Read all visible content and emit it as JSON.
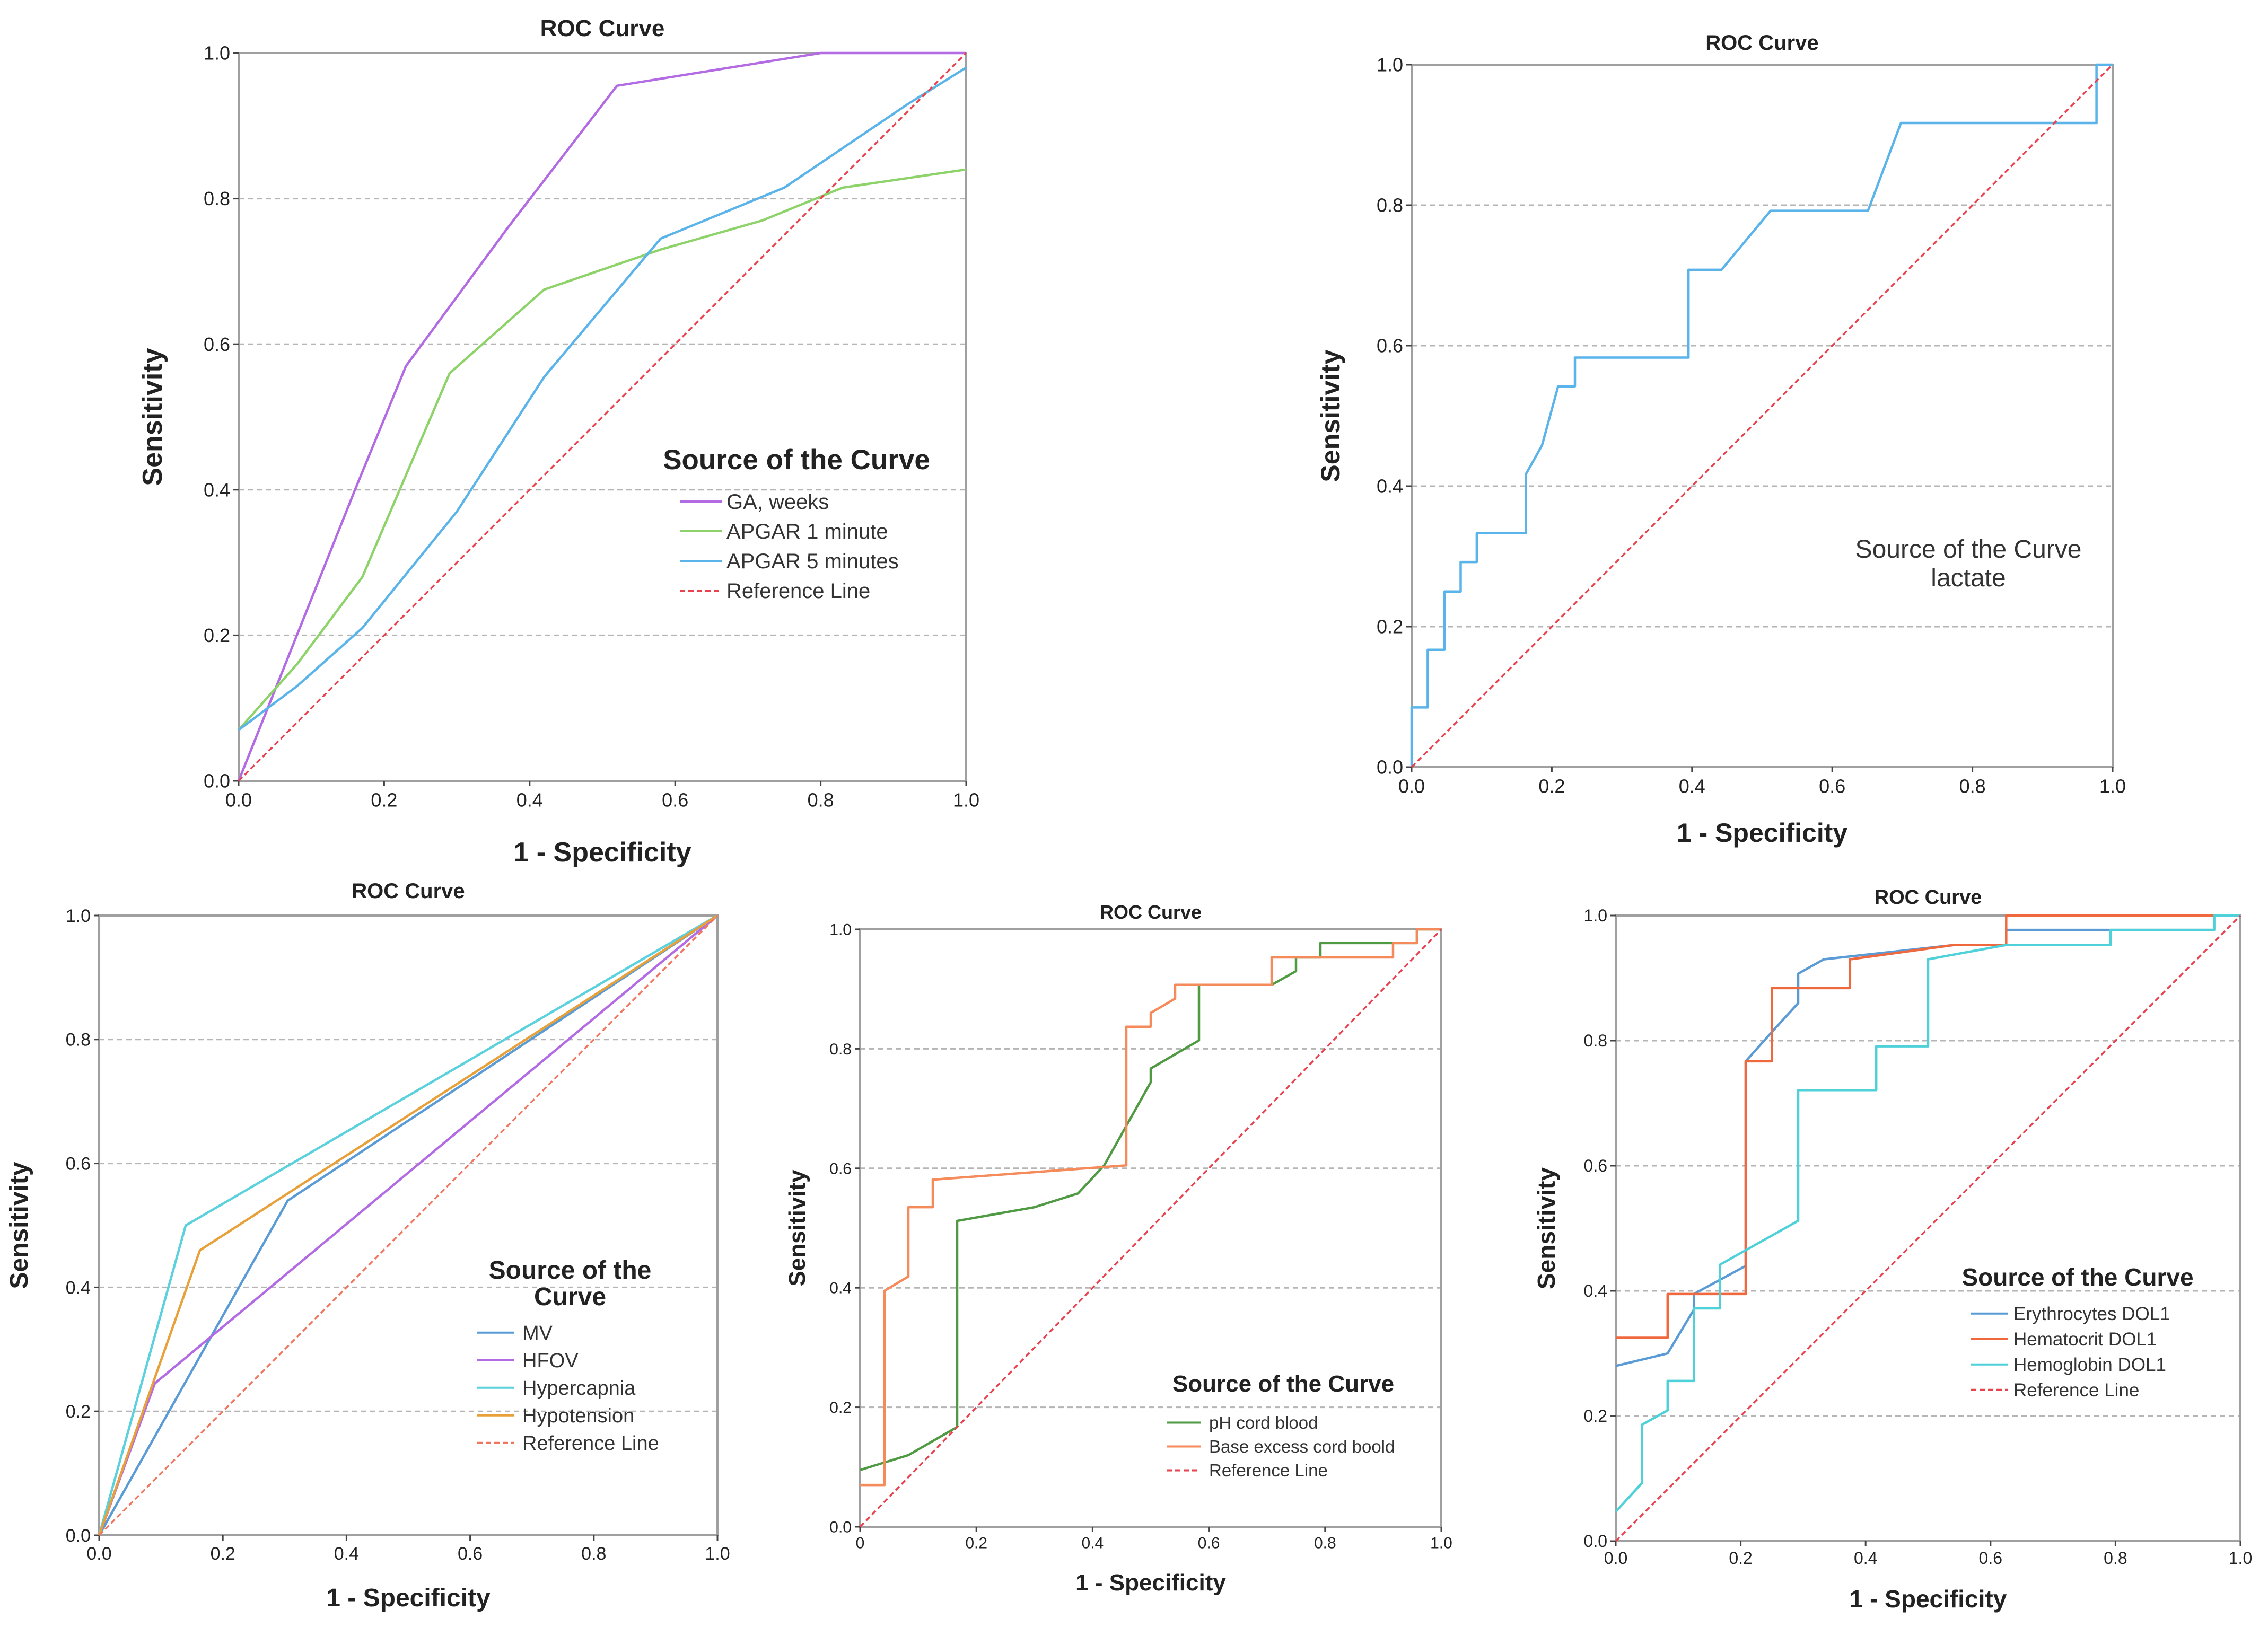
{
  "chart_data": [
    {
      "type": "line",
      "title": "ROC Curve",
      "xlabel": "1 - Specificity",
      "ylabel": "Sensitivity",
      "xlim": [
        0,
        1
      ],
      "ylim": [
        0,
        1
      ],
      "xticks": [
        "0.0",
        "0.2",
        "0.4",
        "0.6",
        "0.8",
        "1.0"
      ],
      "yticks": [
        "0.0",
        "0.2",
        "0.4",
        "0.6",
        "0.8",
        "1.0"
      ],
      "grid": "horizontal dashed",
      "legend_title": "Source of the Curve",
      "legend_title_lines": [
        "Source of the Curve"
      ],
      "series": [
        {
          "name": "GA, weeks",
          "color": "#b36be3",
          "points": [
            [
              0,
              0
            ],
            [
              0.08,
              0.2
            ],
            [
              0.16,
              0.4
            ],
            [
              0.23,
              0.57
            ],
            [
              0.37,
              0.76
            ],
            [
              0.52,
              0.955
            ],
            [
              0.8,
              1.0
            ],
            [
              1.0,
              1.0
            ]
          ]
        },
        {
          "name": "APGAR 1 minute",
          "color": "#8ed36a",
          "points": [
            [
              0,
              0.07
            ],
            [
              0.08,
              0.16
            ],
            [
              0.17,
              0.28
            ],
            [
              0.29,
              0.56
            ],
            [
              0.42,
              0.675
            ],
            [
              0.58,
              0.73
            ],
            [
              0.72,
              0.77
            ],
            [
              0.83,
              0.815
            ],
            [
              1.0,
              0.84
            ]
          ]
        },
        {
          "name": "APGAR 5 minutes",
          "color": "#5ab4ea",
          "points": [
            [
              0,
              0.07
            ],
            [
              0.08,
              0.13
            ],
            [
              0.17,
              0.21
            ],
            [
              0.3,
              0.37
            ],
            [
              0.42,
              0.555
            ],
            [
              0.58,
              0.745
            ],
            [
              0.75,
              0.815
            ],
            [
              0.92,
              0.93
            ],
            [
              1.0,
              0.98
            ]
          ]
        },
        {
          "name": "Reference Line",
          "color": "#e8424f",
          "dashed": true,
          "points": [
            [
              0,
              0
            ],
            [
              1,
              1
            ]
          ]
        }
      ]
    },
    {
      "type": "line",
      "title": "ROC Curve",
      "xlabel": "1 - Specificity",
      "ylabel": "Sensitivity",
      "xlim": [
        0,
        1
      ],
      "ylim": [
        0,
        1
      ],
      "xticks": [
        "0.0",
        "0.2",
        "0.4",
        "0.6",
        "0.8",
        "1.0"
      ],
      "yticks": [
        "0.0",
        "0.2",
        "0.4",
        "0.6",
        "0.8",
        "1.0"
      ],
      "grid": "horizontal dashed",
      "annotation": [
        "Source of the Curve",
        "lactate"
      ],
      "series": [
        {
          "name": "lactate",
          "color": "#5ab4ea",
          "points": [
            [
              0,
              0
            ],
            [
              0,
              0.085
            ],
            [
              0.023,
              0.085
            ],
            [
              0.023,
              0.167
            ],
            [
              0.047,
              0.167
            ],
            [
              0.047,
              0.25
            ],
            [
              0.07,
              0.25
            ],
            [
              0.07,
              0.292
            ],
            [
              0.093,
              0.292
            ],
            [
              0.093,
              0.333
            ],
            [
              0.163,
              0.333
            ],
            [
              0.163,
              0.417
            ],
            [
              0.186,
              0.458
            ],
            [
              0.209,
              0.542
            ],
            [
              0.233,
              0.542
            ],
            [
              0.233,
              0.583
            ],
            [
              0.395,
              0.583
            ],
            [
              0.395,
              0.708
            ],
            [
              0.442,
              0.708
            ],
            [
              0.512,
              0.792
            ],
            [
              0.651,
              0.792
            ],
            [
              0.698,
              0.917
            ],
            [
              0.977,
              0.917
            ],
            [
              0.977,
              1.0
            ],
            [
              1.0,
              1.0
            ]
          ]
        },
        {
          "name": "Reference Line",
          "color": "#e8424f",
          "dashed": true,
          "points": [
            [
              0,
              0
            ],
            [
              1,
              1
            ]
          ]
        }
      ]
    },
    {
      "type": "line",
      "title": "ROC Curve",
      "xlabel": "1 - Specificity",
      "ylabel": "Sensitivity",
      "xlim": [
        0,
        1
      ],
      "ylim": [
        0,
        1
      ],
      "xticks": [
        "0.0",
        "0.2",
        "0.4",
        "0.6",
        "0.8",
        "1.0"
      ],
      "yticks": [
        "0.0",
        "0.2",
        "0.4",
        "0.6",
        "0.8",
        "1.0"
      ],
      "grid": "horizontal dashed",
      "legend_title": "Source of the Curve",
      "legend_title_lines": [
        "Source of the",
        "Curve"
      ],
      "series": [
        {
          "name": "MV",
          "color": "#5b9bd5",
          "points": [
            [
              0,
              0
            ],
            [
              0.305,
              0.54
            ],
            [
              1,
              1
            ]
          ]
        },
        {
          "name": "HFOV",
          "color": "#b36be3",
          "points": [
            [
              0,
              0
            ],
            [
              0.09,
              0.245
            ],
            [
              1,
              1
            ]
          ]
        },
        {
          "name": "Hypercapnia",
          "color": "#5ad1dc",
          "points": [
            [
              0,
              0
            ],
            [
              0.14,
              0.5
            ],
            [
              1,
              1
            ]
          ]
        },
        {
          "name": "Hypotension",
          "color": "#e8a13a",
          "points": [
            [
              0,
              0
            ],
            [
              0.163,
              0.46
            ],
            [
              1,
              1
            ]
          ]
        },
        {
          "name": "Reference Line",
          "color": "#f0775f",
          "dashed": true,
          "points": [
            [
              0,
              0
            ],
            [
              1,
              1
            ]
          ]
        }
      ]
    },
    {
      "type": "line",
      "title": "ROC Curve",
      "xlabel": "1 - Specificity",
      "ylabel": "Sensitivity",
      "xlim": [
        0,
        1
      ],
      "ylim": [
        0,
        1
      ],
      "xticks": [
        "0",
        "0.2",
        "0.4",
        "0.6",
        "0.8",
        "1.0"
      ],
      "yticks": [
        "0.0",
        "0.2",
        "0.4",
        "0.6",
        "0.8",
        "1.0"
      ],
      "grid": "horizontal dashed",
      "legend_title": "Source of the Curve",
      "legend_title_lines": [
        "Source of the Curve"
      ],
      "series": [
        {
          "name": "pH cord blood",
          "color": "#4f9a43",
          "points": [
            [
              0,
              0.095
            ],
            [
              0.083,
              0.12
            ],
            [
              0.167,
              0.167
            ],
            [
              0.167,
              0.512
            ],
            [
              0.3,
              0.535
            ],
            [
              0.375,
              0.558
            ],
            [
              0.42,
              0.605
            ],
            [
              0.5,
              0.744
            ],
            [
              0.5,
              0.767
            ],
            [
              0.583,
              0.814
            ],
            [
              0.583,
              0.907
            ],
            [
              0.708,
              0.907
            ],
            [
              0.75,
              0.93
            ],
            [
              0.75,
              0.953
            ],
            [
              0.792,
              0.953
            ],
            [
              0.792,
              0.977
            ],
            [
              0.958,
              0.977
            ],
            [
              0.958,
              1.0
            ],
            [
              1.0,
              1.0
            ]
          ]
        },
        {
          "name": "Base excess cord boold",
          "color": "#f58a5a",
          "points": [
            [
              0,
              0.07
            ],
            [
              0.042,
              0.07
            ],
            [
              0.042,
              0.395
            ],
            [
              0.083,
              0.419
            ],
            [
              0.083,
              0.535
            ],
            [
              0.125,
              0.535
            ],
            [
              0.125,
              0.581
            ],
            [
              0.458,
              0.605
            ],
            [
              0.458,
              0.837
            ],
            [
              0.5,
              0.837
            ],
            [
              0.5,
              0.86
            ],
            [
              0.542,
              0.884
            ],
            [
              0.542,
              0.907
            ],
            [
              0.708,
              0.907
            ],
            [
              0.708,
              0.953
            ],
            [
              0.917,
              0.953
            ],
            [
              0.917,
              0.977
            ],
            [
              0.958,
              0.977
            ],
            [
              0.958,
              1.0
            ],
            [
              1.0,
              1.0
            ]
          ]
        },
        {
          "name": "Reference Line",
          "color": "#e8424f",
          "dashed": true,
          "points": [
            [
              0,
              0
            ],
            [
              1,
              1
            ]
          ]
        }
      ]
    },
    {
      "type": "line",
      "title": "ROC Curve",
      "xlabel": "1 - Specificity",
      "ylabel": "Sensitivity",
      "xlim": [
        0,
        1
      ],
      "ylim": [
        0,
        1
      ],
      "xticks": [
        "0.0",
        "0.2",
        "0.4",
        "0.6",
        "0.8",
        "1.0"
      ],
      "yticks": [
        "0.0",
        "0.2",
        "0.4",
        "0.6",
        "0.8",
        "1.0"
      ],
      "grid": "horizontal dashed",
      "legend_title": "Source of the Curve",
      "legend_title_lines": [
        "Source of the Curve"
      ],
      "series": [
        {
          "name": "Erythrocytes DOL1",
          "color": "#5b9bd5",
          "points": [
            [
              0,
              0.28
            ],
            [
              0.083,
              0.3
            ],
            [
              0.125,
              0.37
            ],
            [
              0.125,
              0.395
            ],
            [
              0.208,
              0.44
            ],
            [
              0.208,
              0.767
            ],
            [
              0.25,
              0.814
            ],
            [
              0.292,
              0.86
            ],
            [
              0.292,
              0.907
            ],
            [
              0.333,
              0.93
            ],
            [
              0.542,
              0.953
            ],
            [
              0.625,
              0.953
            ],
            [
              0.625,
              0.977
            ],
            [
              0.958,
              0.977
            ],
            [
              0.958,
              1.0
            ],
            [
              1.0,
              1.0
            ]
          ]
        },
        {
          "name": "Hematocrit DOL1",
          "color": "#f0683e",
          "points": [
            [
              0,
              0.325
            ],
            [
              0.083,
              0.325
            ],
            [
              0.083,
              0.395
            ],
            [
              0.208,
              0.395
            ],
            [
              0.208,
              0.767
            ],
            [
              0.25,
              0.767
            ],
            [
              0.25,
              0.884
            ],
            [
              0.375,
              0.884
            ],
            [
              0.375,
              0.93
            ],
            [
              0.542,
              0.953
            ],
            [
              0.625,
              0.953
            ],
            [
              0.625,
              1.0
            ],
            [
              1.0,
              1.0
            ]
          ]
        },
        {
          "name": "Hemoglobin DOL1",
          "color": "#4fd1d9",
          "points": [
            [
              0,
              0.047
            ],
            [
              0.042,
              0.093
            ],
            [
              0.042,
              0.186
            ],
            [
              0.083,
              0.209
            ],
            [
              0.083,
              0.256
            ],
            [
              0.125,
              0.256
            ],
            [
              0.125,
              0.372
            ],
            [
              0.167,
              0.372
            ],
            [
              0.167,
              0.442
            ],
            [
              0.292,
              0.512
            ],
            [
              0.292,
              0.721
            ],
            [
              0.417,
              0.721
            ],
            [
              0.417,
              0.791
            ],
            [
              0.5,
              0.791
            ],
            [
              0.5,
              0.93
            ],
            [
              0.625,
              0.953
            ],
            [
              0.792,
              0.953
            ],
            [
              0.792,
              0.977
            ],
            [
              0.958,
              0.977
            ],
            [
              0.958,
              1.0
            ],
            [
              1.0,
              1.0
            ]
          ]
        },
        {
          "name": "Reference Line",
          "color": "#e8424f",
          "dashed": true,
          "points": [
            [
              0,
              0
            ],
            [
              1,
              1
            ]
          ]
        }
      ]
    }
  ]
}
